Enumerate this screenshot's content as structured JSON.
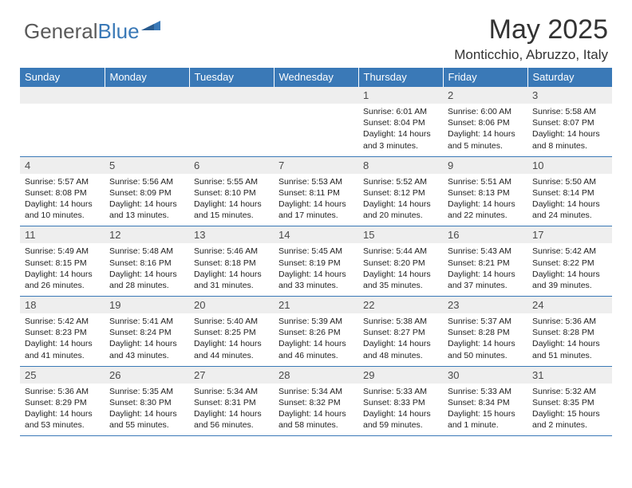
{
  "logo": {
    "text1": "General",
    "text2": "Blue",
    "shape_color": "#3a79b7",
    "text1_color": "#5a5a5a"
  },
  "header": {
    "month_title": "May 2025",
    "location": "Monticchio, Abruzzo, Italy"
  },
  "colors": {
    "header_bg": "#3a79b7",
    "header_fg": "#ffffff",
    "daynum_bg": "#eeeeee",
    "text": "#222222"
  },
  "weekdays": [
    "Sunday",
    "Monday",
    "Tuesday",
    "Wednesday",
    "Thursday",
    "Friday",
    "Saturday"
  ],
  "weeks": [
    [
      null,
      null,
      null,
      null,
      {
        "n": "1",
        "sr": "Sunrise: 6:01 AM",
        "ss": "Sunset: 8:04 PM",
        "dl": "Daylight: 14 hours and 3 minutes."
      },
      {
        "n": "2",
        "sr": "Sunrise: 6:00 AM",
        "ss": "Sunset: 8:06 PM",
        "dl": "Daylight: 14 hours and 5 minutes."
      },
      {
        "n": "3",
        "sr": "Sunrise: 5:58 AM",
        "ss": "Sunset: 8:07 PM",
        "dl": "Daylight: 14 hours and 8 minutes."
      }
    ],
    [
      {
        "n": "4",
        "sr": "Sunrise: 5:57 AM",
        "ss": "Sunset: 8:08 PM",
        "dl": "Daylight: 14 hours and 10 minutes."
      },
      {
        "n": "5",
        "sr": "Sunrise: 5:56 AM",
        "ss": "Sunset: 8:09 PM",
        "dl": "Daylight: 14 hours and 13 minutes."
      },
      {
        "n": "6",
        "sr": "Sunrise: 5:55 AM",
        "ss": "Sunset: 8:10 PM",
        "dl": "Daylight: 14 hours and 15 minutes."
      },
      {
        "n": "7",
        "sr": "Sunrise: 5:53 AM",
        "ss": "Sunset: 8:11 PM",
        "dl": "Daylight: 14 hours and 17 minutes."
      },
      {
        "n": "8",
        "sr": "Sunrise: 5:52 AM",
        "ss": "Sunset: 8:12 PM",
        "dl": "Daylight: 14 hours and 20 minutes."
      },
      {
        "n": "9",
        "sr": "Sunrise: 5:51 AM",
        "ss": "Sunset: 8:13 PM",
        "dl": "Daylight: 14 hours and 22 minutes."
      },
      {
        "n": "10",
        "sr": "Sunrise: 5:50 AM",
        "ss": "Sunset: 8:14 PM",
        "dl": "Daylight: 14 hours and 24 minutes."
      }
    ],
    [
      {
        "n": "11",
        "sr": "Sunrise: 5:49 AM",
        "ss": "Sunset: 8:15 PM",
        "dl": "Daylight: 14 hours and 26 minutes."
      },
      {
        "n": "12",
        "sr": "Sunrise: 5:48 AM",
        "ss": "Sunset: 8:16 PM",
        "dl": "Daylight: 14 hours and 28 minutes."
      },
      {
        "n": "13",
        "sr": "Sunrise: 5:46 AM",
        "ss": "Sunset: 8:18 PM",
        "dl": "Daylight: 14 hours and 31 minutes."
      },
      {
        "n": "14",
        "sr": "Sunrise: 5:45 AM",
        "ss": "Sunset: 8:19 PM",
        "dl": "Daylight: 14 hours and 33 minutes."
      },
      {
        "n": "15",
        "sr": "Sunrise: 5:44 AM",
        "ss": "Sunset: 8:20 PM",
        "dl": "Daylight: 14 hours and 35 minutes."
      },
      {
        "n": "16",
        "sr": "Sunrise: 5:43 AM",
        "ss": "Sunset: 8:21 PM",
        "dl": "Daylight: 14 hours and 37 minutes."
      },
      {
        "n": "17",
        "sr": "Sunrise: 5:42 AM",
        "ss": "Sunset: 8:22 PM",
        "dl": "Daylight: 14 hours and 39 minutes."
      }
    ],
    [
      {
        "n": "18",
        "sr": "Sunrise: 5:42 AM",
        "ss": "Sunset: 8:23 PM",
        "dl": "Daylight: 14 hours and 41 minutes."
      },
      {
        "n": "19",
        "sr": "Sunrise: 5:41 AM",
        "ss": "Sunset: 8:24 PM",
        "dl": "Daylight: 14 hours and 43 minutes."
      },
      {
        "n": "20",
        "sr": "Sunrise: 5:40 AM",
        "ss": "Sunset: 8:25 PM",
        "dl": "Daylight: 14 hours and 44 minutes."
      },
      {
        "n": "21",
        "sr": "Sunrise: 5:39 AM",
        "ss": "Sunset: 8:26 PM",
        "dl": "Daylight: 14 hours and 46 minutes."
      },
      {
        "n": "22",
        "sr": "Sunrise: 5:38 AM",
        "ss": "Sunset: 8:27 PM",
        "dl": "Daylight: 14 hours and 48 minutes."
      },
      {
        "n": "23",
        "sr": "Sunrise: 5:37 AM",
        "ss": "Sunset: 8:28 PM",
        "dl": "Daylight: 14 hours and 50 minutes."
      },
      {
        "n": "24",
        "sr": "Sunrise: 5:36 AM",
        "ss": "Sunset: 8:28 PM",
        "dl": "Daylight: 14 hours and 51 minutes."
      }
    ],
    [
      {
        "n": "25",
        "sr": "Sunrise: 5:36 AM",
        "ss": "Sunset: 8:29 PM",
        "dl": "Daylight: 14 hours and 53 minutes."
      },
      {
        "n": "26",
        "sr": "Sunrise: 5:35 AM",
        "ss": "Sunset: 8:30 PM",
        "dl": "Daylight: 14 hours and 55 minutes."
      },
      {
        "n": "27",
        "sr": "Sunrise: 5:34 AM",
        "ss": "Sunset: 8:31 PM",
        "dl": "Daylight: 14 hours and 56 minutes."
      },
      {
        "n": "28",
        "sr": "Sunrise: 5:34 AM",
        "ss": "Sunset: 8:32 PM",
        "dl": "Daylight: 14 hours and 58 minutes."
      },
      {
        "n": "29",
        "sr": "Sunrise: 5:33 AM",
        "ss": "Sunset: 8:33 PM",
        "dl": "Daylight: 14 hours and 59 minutes."
      },
      {
        "n": "30",
        "sr": "Sunrise: 5:33 AM",
        "ss": "Sunset: 8:34 PM",
        "dl": "Daylight: 15 hours and 1 minute."
      },
      {
        "n": "31",
        "sr": "Sunrise: 5:32 AM",
        "ss": "Sunset: 8:35 PM",
        "dl": "Daylight: 15 hours and 2 minutes."
      }
    ]
  ]
}
